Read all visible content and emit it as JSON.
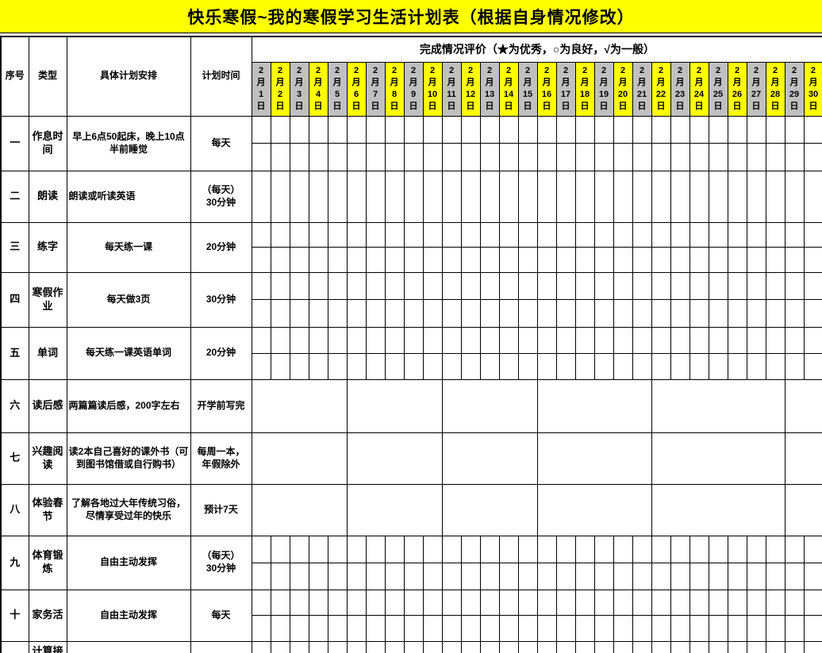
{
  "title": "快乐寒假~我的寒假学习生活计划表（根据自身情况修改）",
  "colors": {
    "title_bg": "#ffff00",
    "date_odd_bg": "#c0c0c0",
    "date_even_bg": "#ffff00",
    "border": "#000000",
    "text": "#000000"
  },
  "header": {
    "col_no": "序号",
    "col_type": "类型",
    "col_plan": "具体计划安排",
    "col_time": "计划时间",
    "eval_title": "完成情况评价（★为优秀，○为良好，√为一般）"
  },
  "legend": {
    "star": "★为优秀",
    "circle": "○为良好",
    "check": "√为一般"
  },
  "dates": {
    "month": "2",
    "month_char": "月",
    "day_char": "日",
    "days": [
      1,
      2,
      3,
      4,
      5,
      6,
      7,
      8,
      9,
      10,
      11,
      12,
      13,
      14,
      15,
      16,
      17,
      18,
      19,
      20,
      21,
      22,
      23,
      24,
      25,
      26,
      27,
      28,
      29,
      30
    ]
  },
  "rows": [
    {
      "no": "一",
      "type": "作息时间",
      "plan": "早上6点50起床，晚上10点半前睡觉",
      "time": "每天",
      "grid": "split",
      "plan_align": "center"
    },
    {
      "no": "二",
      "type": "朗读",
      "plan": "朗读或听读英语",
      "time": "（每天）\n30分钟",
      "grid": "single",
      "plan_align": "left"
    },
    {
      "no": "三",
      "type": "练字",
      "plan": "每天练一课",
      "time": "20分钟",
      "grid": "split",
      "plan_align": "center"
    },
    {
      "no": "四",
      "type": "寒假作业",
      "plan": "每天做3页",
      "time": "30分钟",
      "grid": "split",
      "plan_align": "center"
    },
    {
      "no": "五",
      "type": "单词",
      "plan": "每天练一课英语单词",
      "time": "20分钟",
      "grid": "split",
      "plan_align": "center"
    },
    {
      "no": "六",
      "type": "读后感",
      "plan": "两篇篇读后感，200字左右",
      "time": "开学前写完",
      "grid": "merged",
      "plan_align": "left",
      "merge_spans": [
        5,
        5,
        5,
        6,
        7,
        2
      ]
    },
    {
      "no": "七",
      "type": "兴趣阅读",
      "plan": "读2本自己喜好的课外书（可到图书馆借或自行购书）",
      "time": "每周一本，\n年假除外",
      "grid": "merged",
      "plan_align": "center",
      "merge_spans": [
        5,
        5,
        5,
        6,
        7,
        2
      ]
    },
    {
      "no": "八",
      "type": "体验春节",
      "plan": "了解各地过大年传统习俗，尽情享受过年的快乐",
      "time": "预计7天",
      "grid": "merged",
      "plan_align": "center",
      "merge_spans": [
        5,
        5,
        5,
        6,
        7,
        2
      ]
    },
    {
      "no": "九",
      "type": "体育锻炼",
      "plan": "自由主动发挥",
      "time": "（每天）\n30分钟",
      "grid": "split",
      "plan_align": "center"
    },
    {
      "no": "十",
      "type": "家务活",
      "plan": "自由主动发挥",
      "time": "每天",
      "grid": "split",
      "plan_align": "center"
    },
    {
      "no": "",
      "type": "计算接",
      "plan": "",
      "time": "",
      "grid": "single",
      "plan_align": "center",
      "clipped": true
    }
  ]
}
